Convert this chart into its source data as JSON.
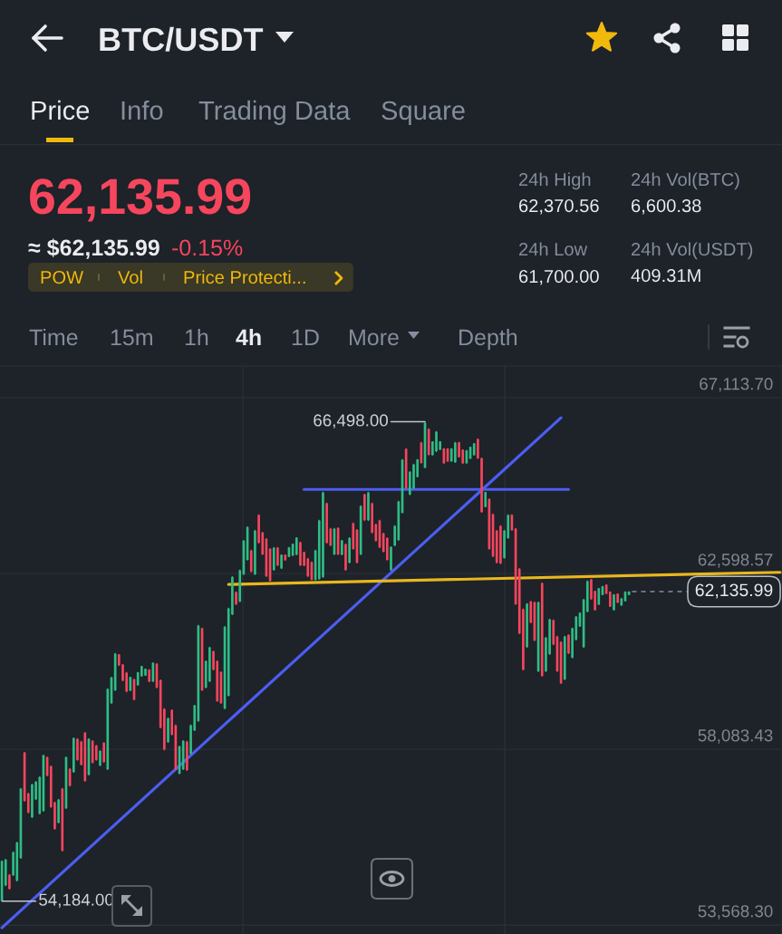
{
  "chart_data": {
    "type": "candlestick",
    "title": "BTC/USDT",
    "annotations": [
      "Price",
      "Info",
      "Trading Data",
      "Square",
      "62,135.99",
      "≈ $62,135.99",
      "-0.15%",
      "POW",
      "Vol",
      "Price Protecti...",
      "24h High",
      "62,370.56",
      "24h Low",
      "61,700.00",
      "24h Vol(BTC)",
      "6,600.38",
      "24h Vol(USDT)",
      "409.31M",
      "Time",
      "15m",
      "1h",
      "4h",
      "1D",
      "More",
      "Depth",
      "66,498.00",
      "54,184.00"
    ],
    "categories": [
      null,
      null,
      null,
      null,
      null,
      null,
      null,
      null,
      null,
      null,
      null,
      null,
      null,
      null,
      null,
      null,
      null,
      null,
      null,
      null,
      null,
      null,
      null,
      null,
      null,
      null,
      null,
      null,
      null,
      null,
      null,
      null,
      null,
      null,
      null,
      null,
      null,
      null,
      null,
      null,
      null,
      null,
      null,
      null,
      null,
      null,
      null,
      null,
      null,
      null,
      null,
      null,
      null,
      null,
      null,
      null,
      null,
      null,
      null,
      null,
      null,
      null,
      null,
      null,
      null,
      null,
      null,
      null,
      null,
      null,
      null,
      null,
      null,
      null,
      null,
      null,
      null,
      null,
      null,
      null,
      null,
      null,
      null,
      null,
      null,
      null,
      null,
      null,
      null,
      null,
      null,
      null,
      null,
      null,
      null,
      null,
      null,
      null,
      null,
      null,
      null,
      null,
      null,
      null,
      null,
      null,
      null,
      null,
      null,
      null,
      null,
      null,
      null,
      null,
      null,
      null,
      null,
      null,
      null,
      null,
      null,
      null,
      null,
      null,
      null,
      null,
      null,
      null,
      null,
      null,
      null,
      null,
      null,
      null,
      null,
      null,
      null,
      null,
      null,
      null,
      null,
      null,
      null,
      null,
      null,
      null,
      null,
      null,
      null,
      null,
      null,
      null,
      null,
      null,
      null,
      null,
      null,
      null,
      null,
      null,
      null,
      null,
      null,
      null,
      null,
      null,
      null,
      null,
      null,
      null,
      null,
      null,
      null,
      null,
      null,
      null,
      null,
      null,
      null,
      null,
      null,
      null,
      null,
      null,
      null,
      null,
      null,
      null,
      null,
      null,
      null,
      null,
      null,
      null,
      null,
      null,
      null,
      null,
      null,
      null,
      null,
      null,
      null,
      null,
      null,
      null,
      null
    ],
    "ohlc": [
      [
        54200,
        55230,
        54184,
        55210
      ],
      [
        54590,
        55270,
        54570,
        55250
      ],
      [
        54860,
        54880,
        54480,
        54500
      ],
      [
        54850,
        55460,
        54830,
        55440
      ],
      [
        54710,
        55710,
        54690,
        55690
      ],
      [
        55290,
        57090,
        55270,
        57070
      ],
      [
        58000,
        58020,
        56740,
        56760
      ],
      [
        56950,
        56970,
        56440,
        56460
      ],
      [
        56340,
        57200,
        56320,
        57180
      ],
      [
        56800,
        57270,
        56780,
        57250
      ],
      [
        56430,
        57390,
        56410,
        57370
      ],
      [
        56500,
        57950,
        56480,
        57930
      ],
      [
        57880,
        57900,
        57390,
        57410
      ],
      [
        57650,
        57670,
        56580,
        56600
      ],
      [
        56720,
        56740,
        56020,
        56040
      ],
      [
        56200,
        56810,
        56180,
        56790
      ],
      [
        57070,
        57090,
        55460,
        55480
      ],
      [
        56570,
        57900,
        56550,
        57880
      ],
      [
        57580,
        57600,
        57130,
        57150
      ],
      [
        57500,
        58390,
        57480,
        58370
      ],
      [
        58350,
        58370,
        57790,
        57810
      ],
      [
        58280,
        58300,
        57670,
        57690
      ],
      [
        58510,
        58530,
        57250,
        57270
      ],
      [
        57430,
        58370,
        57410,
        58350
      ],
      [
        58300,
        58320,
        57720,
        57740
      ],
      [
        58180,
        58200,
        57790,
        57810
      ],
      [
        57670,
        58060,
        57650,
        58040
      ],
      [
        58250,
        58270,
        57740,
        57760
      ],
      [
        57570,
        59650,
        57550,
        59630
      ],
      [
        59270,
        59950,
        59250,
        59930
      ],
      [
        59600,
        60560,
        59580,
        60540
      ],
      [
        60520,
        60530,
        60230,
        60240
      ],
      [
        60260,
        60280,
        59830,
        59850
      ],
      [
        60050,
        60070,
        59550,
        59570
      ],
      [
        59590,
        59950,
        59580,
        59940
      ],
      [
        59880,
        59900,
        59340,
        59360
      ],
      [
        59730,
        60070,
        59720,
        60060
      ],
      [
        59960,
        60230,
        59950,
        60220
      ],
      [
        59980,
        60160,
        59970,
        60150
      ],
      [
        60130,
        60140,
        59810,
        59820
      ],
      [
        59830,
        60320,
        59810,
        60300
      ],
      [
        60280,
        60300,
        59650,
        59670
      ],
      [
        59860,
        59880,
        58620,
        58640
      ],
      [
        59120,
        59140,
        58060,
        58080
      ],
      [
        58270,
        58900,
        58250,
        58880
      ],
      [
        59090,
        59110,
        58440,
        58460
      ],
      [
        58700,
        58720,
        57550,
        57570
      ],
      [
        57460,
        58180,
        57440,
        58160
      ],
      [
        57570,
        58320,
        57550,
        58300
      ],
      [
        58280,
        58300,
        57530,
        57550
      ],
      [
        57970,
        58720,
        57950,
        58700
      ],
      [
        58570,
        59230,
        58550,
        59210
      ],
      [
        58810,
        61280,
        58790,
        61260
      ],
      [
        61190,
        61210,
        59580,
        59600
      ],
      [
        59670,
        60370,
        59650,
        60350
      ],
      [
        59830,
        60720,
        59810,
        60700
      ],
      [
        60600,
        60620,
        60110,
        60130
      ],
      [
        60350,
        60370,
        59300,
        59320
      ],
      [
        60070,
        60090,
        59250,
        59270
      ],
      [
        59130,
        61250,
        59110,
        61230
      ],
      [
        59460,
        61720,
        59440,
        61700
      ],
      [
        61550,
        62530,
        61530,
        62510
      ],
      [
        62120,
        62140,
        61790,
        61810
      ],
      [
        61880,
        62700,
        61860,
        62680
      ],
      [
        62580,
        63460,
        62560,
        63440
      ],
      [
        62950,
        63810,
        62930,
        63790
      ],
      [
        63190,
        63210,
        62630,
        62650
      ],
      [
        62580,
        63720,
        62560,
        63700
      ],
      [
        64100,
        64120,
        63370,
        63390
      ],
      [
        63650,
        63670,
        63070,
        63090
      ],
      [
        63490,
        63510,
        62510,
        62530
      ],
      [
        63230,
        63250,
        62390,
        62410
      ],
      [
        62690,
        63280,
        62670,
        63260
      ],
      [
        63260,
        63280,
        62790,
        62810
      ],
      [
        62730,
        63090,
        62720,
        63080
      ],
      [
        63080,
        63090,
        62930,
        62940
      ],
      [
        63030,
        63280,
        63020,
        63270
      ],
      [
        63060,
        63370,
        63050,
        63360
      ],
      [
        63080,
        63530,
        63070,
        63520
      ],
      [
        63400,
        63420,
        62790,
        62810
      ],
      [
        63150,
        63160,
        62790,
        62800
      ],
      [
        62980,
        63000,
        62510,
        62530
      ],
      [
        62890,
        62910,
        62420,
        62440
      ],
      [
        62440,
        63210,
        62420,
        63190
      ],
      [
        62460,
        63980,
        62440,
        63960
      ],
      [
        62510,
        64700,
        62490,
        64680
      ],
      [
        64400,
        64420,
        63370,
        63390
      ],
      [
        63750,
        63770,
        63300,
        63320
      ],
      [
        63090,
        63770,
        63070,
        63750
      ],
      [
        63770,
        63790,
        63070,
        63090
      ],
      [
        63080,
        63460,
        63070,
        63450
      ],
      [
        63350,
        63370,
        62670,
        62690
      ],
      [
        62880,
        63530,
        62860,
        63510
      ],
      [
        63890,
        63910,
        63210,
        63230
      ],
      [
        63720,
        63740,
        62860,
        62880
      ],
      [
        63090,
        64350,
        63070,
        64330
      ],
      [
        64630,
        64650,
        63950,
        63970
      ],
      [
        63970,
        64700,
        63950,
        64680
      ],
      [
        64400,
        64420,
        63630,
        63650
      ],
      [
        63860,
        63880,
        63420,
        63440
      ],
      [
        63960,
        63980,
        63250,
        63270
      ],
      [
        63630,
        63650,
        63140,
        63160
      ],
      [
        63510,
        63530,
        62930,
        62950
      ],
      [
        62690,
        63300,
        62670,
        63280
      ],
      [
        63320,
        63840,
        63300,
        63820
      ],
      [
        63460,
        64470,
        63440,
        64450
      ],
      [
        64160,
        65540,
        64140,
        65520
      ],
      [
        65800,
        65820,
        64770,
        64790
      ],
      [
        64630,
        65230,
        64610,
        65210
      ],
      [
        64790,
        65420,
        64770,
        65400
      ],
      [
        65080,
        65540,
        65070,
        65530
      ],
      [
        65960,
        65980,
        65420,
        65440
      ],
      [
        65320,
        66498,
        65300,
        66470
      ],
      [
        66310,
        66330,
        65630,
        65650
      ],
      [
        65640,
        66000,
        65630,
        65990
      ],
      [
        65740,
        66260,
        65720,
        66240
      ],
      [
        65780,
        66000,
        65770,
        65990
      ],
      [
        65810,
        65820,
        65420,
        65430
      ],
      [
        65810,
        65820,
        65470,
        65480
      ],
      [
        65480,
        65820,
        65470,
        65810
      ],
      [
        65460,
        65980,
        65440,
        65960
      ],
      [
        65970,
        65980,
        65580,
        65590
      ],
      [
        65780,
        65790,
        65420,
        65430
      ],
      [
        65430,
        65770,
        65420,
        65760
      ],
      [
        65550,
        65860,
        65540,
        65850
      ],
      [
        65640,
        65950,
        65630,
        65940
      ],
      [
        66050,
        66070,
        65540,
        65560
      ],
      [
        65560,
        65580,
        64160,
        64180
      ],
      [
        64310,
        64700,
        64300,
        64690
      ],
      [
        64510,
        64530,
        63210,
        63230
      ],
      [
        64120,
        64140,
        63020,
        63040
      ],
      [
        63700,
        63720,
        62860,
        62880
      ],
      [
        63820,
        63840,
        62840,
        62860
      ],
      [
        63000,
        63720,
        62980,
        63700
      ],
      [
        63510,
        64120,
        63490,
        64100
      ],
      [
        64110,
        64120,
        63700,
        63710
      ],
      [
        63750,
        63770,
        61790,
        61810
      ],
      [
        62720,
        62740,
        61040,
        61060
      ],
      [
        61680,
        61700,
        60110,
        60130
      ],
      [
        60710,
        61840,
        60690,
        61820
      ],
      [
        61880,
        61900,
        61320,
        61340
      ],
      [
        61860,
        61880,
        60860,
        60880
      ],
      [
        60090,
        61880,
        60070,
        61860
      ],
      [
        62350,
        62370,
        59950,
        59970
      ],
      [
        60090,
        60970,
        60070,
        60950
      ],
      [
        60530,
        61440,
        60510,
        61420
      ],
      [
        61400,
        61420,
        60760,
        60780
      ],
      [
        60980,
        61000,
        60070,
        60090
      ],
      [
        60840,
        60860,
        59760,
        59780
      ],
      [
        59880,
        61000,
        59860,
        60980
      ],
      [
        61020,
        61040,
        60530,
        60550
      ],
      [
        60440,
        61210,
        60420,
        61190
      ],
      [
        60900,
        61510,
        60880,
        61490
      ],
      [
        61240,
        61600,
        61230,
        61590
      ],
      [
        60710,
        61950,
        60690,
        61930
      ],
      [
        61620,
        62420,
        61600,
        62400
      ],
      [
        62450,
        62460,
        61930,
        61940
      ],
      [
        62150,
        62160,
        61650,
        61660
      ],
      [
        61800,
        62230,
        61790,
        62220
      ],
      [
        62050,
        62280,
        62040,
        62270
      ],
      [
        62310,
        62320,
        62070,
        62080
      ],
      [
        62130,
        62140,
        61740,
        61750
      ],
      [
        61660,
        62070,
        61650,
        62060
      ],
      [
        62080,
        62090,
        61840,
        61850
      ],
      [
        61780,
        61970,
        61770,
        61960
      ],
      [
        61890,
        62140,
        61880,
        62130
      ],
      [
        62050,
        62140,
        62040,
        62135.99
      ],
      null,
      null,
      null,
      null,
      null,
      null,
      null,
      null,
      null,
      null,
      null,
      null,
      null,
      null,
      null,
      null,
      null,
      null,
      null,
      null,
      null,
      null,
      null,
      null,
      null,
      null,
      null,
      null,
      null,
      null,
      null,
      null,
      null,
      null,
      null,
      null,
      null,
      null,
      null,
      null
    ],
    "colors": [
      "#2ebd85",
      "#2ebd85",
      "#f6465d",
      "#2ebd85",
      "#2ebd85",
      "#2ebd85",
      "#f6465d",
      "#f6465d",
      "#2ebd85",
      "#2ebd85",
      "#2ebd85",
      "#2ebd85",
      "#f6465d",
      "#f6465d",
      "#f6465d",
      "#2ebd85",
      "#f6465d",
      "#2ebd85",
      "#f6465d",
      "#2ebd85",
      "#f6465d",
      "#f6465d",
      "#f6465d",
      "#2ebd85",
      "#f6465d",
      "#f6465d",
      "#2ebd85",
      "#f6465d",
      "#2ebd85",
      "#2ebd85",
      "#2ebd85",
      "#f6465d",
      "#f6465d",
      "#f6465d",
      "#2ebd85",
      "#f6465d",
      "#2ebd85",
      "#2ebd85",
      "#2ebd85",
      "#f6465d",
      "#2ebd85",
      "#f6465d",
      "#f6465d",
      "#f6465d",
      "#2ebd85",
      "#f6465d",
      "#f6465d",
      "#2ebd85",
      "#2ebd85",
      "#f6465d",
      "#2ebd85",
      "#2ebd85",
      "#2ebd85",
      "#f6465d",
      "#2ebd85",
      "#2ebd85",
      "#f6465d",
      "#f6465d",
      "#f6465d",
      "#2ebd85",
      "#2ebd85",
      "#2ebd85",
      "#f6465d",
      "#2ebd85",
      "#2ebd85",
      "#2ebd85",
      "#f6465d",
      "#2ebd85",
      "#f6465d",
      "#f6465d",
      "#f6465d",
      "#f6465d",
      "#2ebd85",
      "#f6465d",
      "#2ebd85",
      "#f6465d",
      "#2ebd85",
      "#2ebd85",
      "#2ebd85",
      "#f6465d",
      "#f6465d",
      "#f6465d",
      "#f6465d",
      "#2ebd85",
      "#2ebd85",
      "#2ebd85",
      "#f6465d",
      "#f6465d",
      "#2ebd85",
      "#f6465d",
      "#2ebd85",
      "#f6465d",
      "#2ebd85",
      "#f6465d",
      "#f6465d",
      "#2ebd85",
      "#f6465d",
      "#2ebd85",
      "#f6465d",
      "#f6465d",
      "#f6465d",
      "#f6465d",
      "#f6465d",
      "#2ebd85",
      "#2ebd85",
      "#2ebd85",
      "#2ebd85",
      "#f6465d",
      "#2ebd85",
      "#2ebd85",
      "#2ebd85",
      "#f6465d",
      "#2ebd85",
      "#f6465d",
      "#2ebd85",
      "#2ebd85",
      "#2ebd85",
      "#f6465d",
      "#f6465d",
      "#2ebd85",
      "#2ebd85",
      "#f6465d",
      "#f6465d",
      "#2ebd85",
      "#2ebd85",
      "#2ebd85",
      "#f6465d",
      "#f6465d",
      "#2ebd85",
      "#f6465d",
      "#f6465d",
      "#f6465d",
      "#f6465d",
      "#2ebd85",
      "#2ebd85",
      "#f6465d",
      "#f6465d",
      "#f6465d",
      "#f6465d",
      "#2ebd85",
      "#f6465d",
      "#f6465d",
      "#2ebd85",
      "#f6465d",
      "#2ebd85",
      "#2ebd85",
      "#f6465d",
      "#f6465d",
      "#f6465d",
      "#2ebd85",
      "#f6465d",
      "#2ebd85",
      "#2ebd85",
      "#2ebd85",
      "#2ebd85",
      "#2ebd85",
      "#f6465d",
      "#f6465d",
      "#2ebd85",
      "#2ebd85",
      "#f6465d",
      "#f6465d",
      "#2ebd85",
      "#f6465d",
      "#2ebd85",
      "#2ebd85",
      "#2ebd85",
      null,
      null,
      null,
      null,
      null,
      null,
      null,
      null,
      null,
      null,
      null,
      null,
      null,
      null,
      null,
      null,
      null,
      null,
      null,
      null,
      null,
      null,
      null,
      null,
      null,
      null,
      null,
      null,
      null,
      null,
      null,
      null,
      null,
      null,
      null,
      null,
      null,
      null,
      null,
      null
    ],
    "series": [
      {
        "type": "line",
        "color": "#4b5ef0",
        "values": [
          53500,
          null,
          null,
          null,
          null,
          null,
          null,
          null,
          null,
          null,
          null,
          null,
          null,
          null,
          null,
          null,
          null,
          null,
          null,
          null,
          null,
          null,
          null,
          null,
          null,
          null,
          null,
          null,
          null,
          null,
          null,
          null,
          null,
          null,
          null,
          null,
          null,
          null,
          null,
          null,
          null,
          null,
          null,
          null,
          null,
          null,
          null,
          null,
          null,
          null,
          null,
          null,
          null,
          null,
          null,
          null,
          null,
          null,
          null,
          null,
          null,
          null,
          null,
          null,
          null,
          null,
          null,
          null,
          null,
          null,
          null,
          null,
          null,
          null,
          null,
          null,
          null,
          null,
          null,
          null,
          null,
          null,
          null,
          null,
          null,
          null,
          null,
          null,
          null,
          null,
          null,
          null,
          null,
          null,
          null,
          null,
          null,
          null,
          null,
          null,
          null,
          null,
          null,
          null,
          null,
          null,
          null,
          null,
          null,
          null,
          null,
          null,
          null,
          null,
          null,
          null,
          null,
          null,
          null,
          null,
          null,
          null,
          null,
          null,
          null,
          null,
          null,
          null,
          null,
          null,
          null,
          null,
          null,
          null,
          null,
          null,
          null,
          null,
          null,
          null,
          null,
          null,
          null,
          null,
          null,
          null,
          null,
          null,
          66600,
          null,
          null,
          null,
          null,
          null,
          null,
          null,
          null,
          null,
          null,
          null,
          null,
          null,
          null,
          null,
          null,
          null,
          null,
          null,
          null,
          null,
          null,
          null,
          null,
          null,
          null,
          null,
          null,
          null,
          null,
          null,
          null,
          null,
          null,
          null,
          null,
          null,
          null,
          null,
          null,
          null,
          null,
          null,
          null,
          null,
          null,
          null,
          null,
          null,
          null,
          null,
          null,
          null,
          null,
          null,
          null,
          null,
          null
        ]
      },
      {
        "type": "line",
        "color": "#4b5ef0",
        "values": [
          null,
          null,
          null,
          null,
          null,
          null,
          null,
          null,
          null,
          null,
          null,
          null,
          null,
          null,
          null,
          null,
          null,
          null,
          null,
          null,
          null,
          null,
          null,
          null,
          null,
          null,
          null,
          null,
          null,
          null,
          null,
          null,
          null,
          null,
          null,
          null,
          null,
          null,
          null,
          null,
          null,
          null,
          null,
          null,
          null,
          null,
          null,
          null,
          null,
          null,
          null,
          null,
          null,
          null,
          null,
          null,
          null,
          null,
          null,
          null,
          null,
          null,
          null,
          null,
          null,
          null,
          null,
          null,
          null,
          null,
          null,
          null,
          null,
          null,
          null,
          null,
          null,
          null,
          null,
          null,
          64760,
          null,
          null,
          null,
          null,
          null,
          null,
          null,
          null,
          null,
          null,
          null,
          null,
          null,
          null,
          null,
          null,
          null,
          null,
          null,
          null,
          null,
          null,
          null,
          null,
          null,
          null,
          null,
          null,
          null,
          null,
          null,
          null,
          null,
          null,
          null,
          null,
          null,
          null,
          null,
          null,
          null,
          null,
          null,
          null,
          null,
          null,
          null,
          null,
          null,
          null,
          null,
          null,
          null,
          null,
          null,
          null,
          null,
          null,
          null,
          null,
          null,
          null,
          null,
          null,
          null,
          null,
          null,
          null,
          null,
          64760,
          null,
          null,
          null,
          null,
          null,
          null,
          null,
          null,
          null,
          null,
          null,
          null,
          null,
          null,
          null,
          null,
          null,
          null,
          null,
          null,
          null,
          null,
          null,
          null,
          null,
          null,
          null,
          null,
          null,
          null,
          null,
          null,
          null,
          null,
          null,
          null,
          null,
          null,
          null,
          null,
          null,
          null,
          null,
          null,
          null,
          null,
          null,
          null,
          null,
          null,
          null,
          null,
          null,
          null,
          null,
          null
        ]
      },
      {
        "type": "line",
        "color": "#e8b71e",
        "values": [
          null,
          null,
          null,
          null,
          null,
          null,
          null,
          null,
          null,
          null,
          null,
          null,
          null,
          null,
          null,
          null,
          null,
          null,
          null,
          null,
          null,
          null,
          null,
          null,
          null,
          null,
          null,
          null,
          null,
          null,
          null,
          null,
          null,
          null,
          null,
          null,
          null,
          null,
          null,
          null,
          null,
          null,
          null,
          null,
          null,
          null,
          null,
          null,
          null,
          null,
          null,
          null,
          null,
          null,
          null,
          null,
          null,
          null,
          null,
          null,
          62320,
          null,
          null,
          null,
          null,
          null,
          null,
          null,
          null,
          null,
          null,
          null,
          null,
          null,
          null,
          null,
          null,
          null,
          null,
          null,
          null,
          null,
          null,
          null,
          null,
          null,
          null,
          null,
          null,
          null,
          null,
          null,
          null,
          null,
          null,
          null,
          null,
          null,
          null,
          null,
          null,
          null,
          null,
          null,
          null,
          null,
          null,
          null,
          null,
          null,
          null,
          null,
          null,
          null,
          null,
          null,
          null,
          null,
          null,
          null,
          null,
          null,
          null,
          null,
          null,
          null,
          null,
          null,
          null,
          null,
          null,
          null,
          null,
          null,
          null,
          null,
          null,
          null,
          null,
          null,
          null,
          null,
          null,
          null,
          null,
          null,
          null,
          null,
          null,
          null,
          null,
          null,
          null,
          null,
          null,
          null,
          null,
          null,
          null,
          null,
          null,
          null,
          null,
          null,
          null,
          null,
          null,
          null,
          null,
          null,
          null,
          null,
          null,
          null,
          null,
          null,
          null,
          null,
          null,
          null,
          null,
          null,
          null,
          null,
          null,
          null,
          null,
          null,
          null,
          null,
          null,
          null,
          null,
          null,
          null,
          null,
          null,
          null,
          null,
          null,
          null,
          null,
          null,
          null,
          null,
          null,
          62630
        ]
      }
    ],
    "ref_lines": [
      {
        "axis": "y",
        "value": 62135.99,
        "label": "62,135.99",
        "color": "#848e9c",
        "line_style": "dashed"
      }
    ],
    "ylim": [
      53340,
      67930
    ],
    "yticks": [
      {
        "value": 53568.3,
        "label": "53,568.30"
      },
      {
        "value": 58083.43,
        "label": "58,083.43"
      },
      {
        "value": 62598.57,
        "label": "62,598.57"
      },
      {
        "value": 67113.7,
        "label": "67,113.70"
      }
    ],
    "grid": "y",
    "tick_labels": "y"
  }
}
